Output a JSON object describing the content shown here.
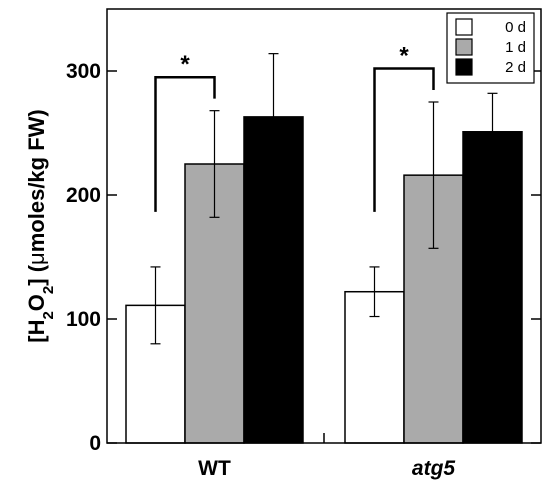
{
  "chart_data": {
    "type": "bar",
    "categories": [
      "WT",
      "atg5"
    ],
    "category_styles": [
      "normal",
      "italic"
    ],
    "series": [
      {
        "name": "0 d",
        "values": [
          111,
          122
        ],
        "errors": [
          31,
          20
        ],
        "color": "#ffffff"
      },
      {
        "name": "1 d",
        "values": [
          225,
          216
        ],
        "errors": [
          43,
          59
        ],
        "color": "#aaaaaa"
      },
      {
        "name": "2 d",
        "values": [
          263,
          251
        ],
        "errors": [
          51,
          31
        ],
        "color": "#000000"
      }
    ],
    "ylabel_parts": [
      "[H",
      "2",
      "O",
      "2",
      "] (",
      "μ",
      "moles/kg FW)"
    ],
    "ylim": [
      0,
      350
    ],
    "yticks": [
      0,
      100,
      200,
      300
    ],
    "ytick_labels": [
      "0",
      "100",
      "200",
      "300"
    ],
    "legend_position": "top-right",
    "grid": false,
    "significance": [
      {
        "category": "WT",
        "from_series": 0,
        "to_series": 1,
        "label": "*"
      },
      {
        "category": "atg5",
        "from_series": 0,
        "to_series": 1,
        "label": "*"
      }
    ]
  }
}
